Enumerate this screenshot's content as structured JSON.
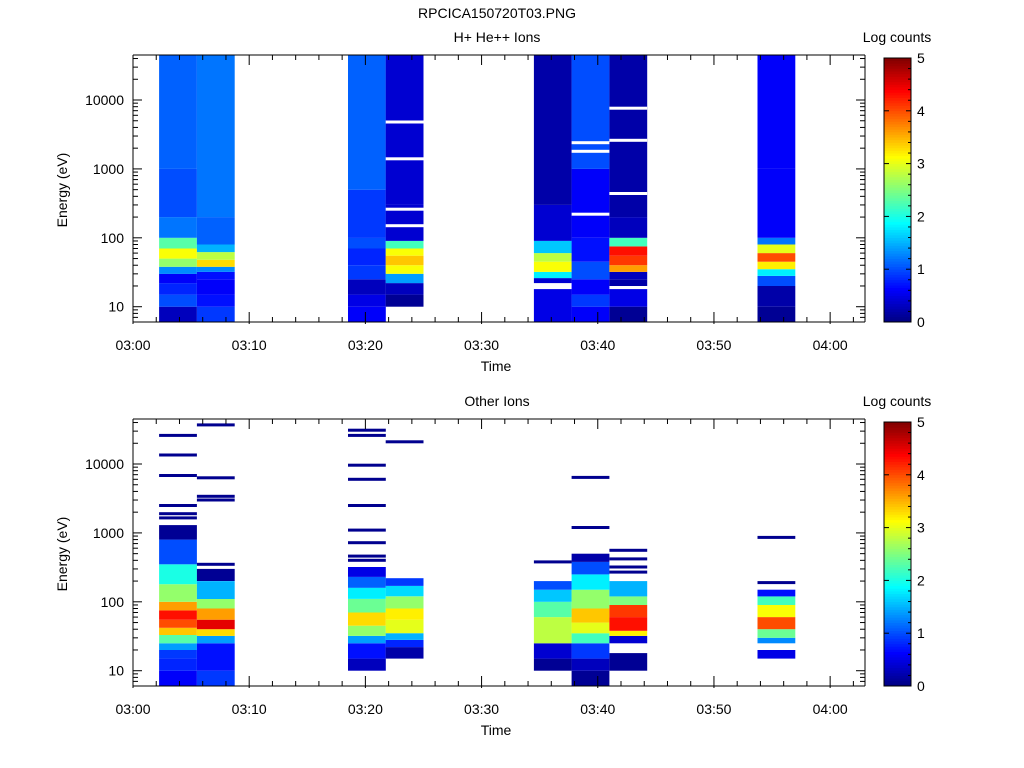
{
  "figure_title": "RPCICA150720T03.PNG",
  "chart_data": [
    {
      "type": "heatmap",
      "title": "H+ He++ Ions",
      "xlabel": "Time",
      "ylabel": "Energy (eV)",
      "y_scale": "log",
      "ylim": [
        6,
        45000
      ],
      "xlim": [
        "03:00",
        "04:03"
      ],
      "x_ticks": [
        "03:00",
        "03:10",
        "03:20",
        "03:30",
        "03:40",
        "03:50",
        "04:00"
      ],
      "y_ticks": [
        "10",
        "100",
        "1000",
        "10000"
      ],
      "colorbar": {
        "label": "Log counts",
        "range": [
          0,
          5
        ],
        "ticks": [
          "0",
          "1",
          "2",
          "3",
          "4",
          "5"
        ]
      },
      "columns": [
        {
          "t_start": "03:02:15",
          "t_end": "03:05:30",
          "bands": [
            [
              6,
              10,
              0.3
            ],
            [
              10,
              15,
              1.0
            ],
            [
              15,
              22,
              0.8
            ],
            [
              22,
              30,
              0.6
            ],
            [
              30,
              38,
              1.3
            ],
            [
              38,
              50,
              2.6
            ],
            [
              50,
              70,
              3.1
            ],
            [
              70,
              100,
              2.3
            ],
            [
              100,
              200,
              1.2
            ],
            [
              200,
              1000,
              1.0
            ],
            [
              1000,
              45000,
              1.1
            ]
          ]
        },
        {
          "t_start": "03:05:30",
          "t_end": "03:08:45",
          "bands": [
            [
              6,
              10,
              0.9
            ],
            [
              10,
              15,
              0.7
            ],
            [
              15,
              25,
              0.6
            ],
            [
              25,
              32,
              0.7
            ],
            [
              32,
              38,
              1.3
            ],
            [
              38,
              48,
              3.3
            ],
            [
              48,
              62,
              2.8
            ],
            [
              62,
              80,
              1.5
            ],
            [
              80,
              200,
              1.1
            ],
            [
              200,
              45000,
              1.2
            ]
          ]
        },
        {
          "t_start": "03:18:30",
          "t_end": "03:21:45",
          "bands": [
            [
              6,
              10,
              0.6
            ],
            [
              10,
              15,
              0.5
            ],
            [
              15,
              25,
              0.3
            ],
            [
              25,
              40,
              0.9
            ],
            [
              40,
              70,
              0.8
            ],
            [
              70,
              100,
              1.0
            ],
            [
              100,
              500,
              0.9
            ],
            [
              500,
              45000,
              1.1
            ]
          ]
        },
        {
          "t_start": "03:21:45",
          "t_end": "03:25:00",
          "bands": [
            [
              10,
              15,
              0.1
            ],
            [
              15,
              22,
              0.3
            ],
            [
              22,
              30,
              1.4
            ],
            [
              30,
              40,
              3.1
            ],
            [
              40,
              55,
              3.4
            ],
            [
              55,
              70,
              3.1
            ],
            [
              70,
              90,
              2.2
            ],
            [
              90,
              300,
              0.4
            ],
            [
              300,
              45000,
              0.4
            ]
          ]
        },
        {
          "t_start": "03:34:30",
          "t_end": "03:37:45",
          "bands": [
            [
              6,
              18,
              0.5
            ],
            [
              22,
              26,
              0.4
            ],
            [
              26,
              32,
              1.8
            ],
            [
              32,
              45,
              3.1
            ],
            [
              45,
              60,
              2.8
            ],
            [
              60,
              90,
              1.6
            ],
            [
              90,
              300,
              0.4
            ],
            [
              300,
              45000,
              0.2
            ]
          ]
        },
        {
          "t_start": "03:37:45",
          "t_end": "03:41:00",
          "bands": [
            [
              6,
              10,
              0.6
            ],
            [
              10,
              15,
              0.9
            ],
            [
              15,
              25,
              0.6
            ],
            [
              25,
              45,
              1.0
            ],
            [
              45,
              100,
              0.7
            ],
            [
              100,
              1000,
              0.6
            ],
            [
              1000,
              45000,
              1.0
            ]
          ]
        },
        {
          "t_start": "03:41:00",
          "t_end": "03:44:15",
          "bands": [
            [
              6,
              10,
              0.1
            ],
            [
              10,
              18,
              0.5
            ],
            [
              20,
              25,
              0.2
            ],
            [
              25,
              32,
              0.3
            ],
            [
              32,
              40,
              3.6
            ],
            [
              40,
              55,
              4.1
            ],
            [
              55,
              75,
              4.3
            ],
            [
              75,
              100,
              2.2
            ],
            [
              100,
              200,
              0.3
            ],
            [
              200,
              45000,
              0.2
            ]
          ]
        },
        {
          "t_start": "03:53:45",
          "t_end": "03:57:00",
          "bands": [
            [
              6,
              10,
              0.1
            ],
            [
              10,
              20,
              0.2
            ],
            [
              20,
              28,
              1.0
            ],
            [
              28,
              35,
              1.8
            ],
            [
              35,
              45,
              3.2
            ],
            [
              45,
              60,
              4.0
            ],
            [
              60,
              80,
              3.0
            ],
            [
              80,
              100,
              1.2
            ],
            [
              100,
              1000,
              0.6
            ],
            [
              1000,
              45000,
              0.6
            ]
          ]
        }
      ],
      "gap_lines": [
        [
          5,
          1800
        ],
        [
          5,
          2400
        ],
        [
          6,
          440
        ],
        [
          3,
          260
        ],
        [
          3,
          1400
        ],
        [
          3,
          4800
        ],
        [
          6,
          2600
        ],
        [
          6,
          7600
        ],
        [
          3,
          150
        ],
        [
          5,
          220
        ]
      ]
    },
    {
      "type": "heatmap",
      "title": "Other Ions",
      "xlabel": "Time",
      "ylabel": "Energy (eV)",
      "y_scale": "log",
      "ylim": [
        6,
        45000
      ],
      "xlim": [
        "03:00",
        "04:03"
      ],
      "x_ticks": [
        "03:00",
        "03:10",
        "03:20",
        "03:30",
        "03:40",
        "03:50",
        "04:00"
      ],
      "y_ticks": [
        "10",
        "100",
        "1000",
        "10000"
      ],
      "colorbar": {
        "label": "Log counts",
        "range": [
          0,
          5
        ],
        "ticks": [
          "0",
          "1",
          "2",
          "3",
          "4",
          "5"
        ]
      },
      "columns": [
        {
          "t_start": "03:02:15",
          "t_end": "03:05:30",
          "bands": [
            [
              6,
              10,
              0.6
            ],
            [
              10,
              15,
              0.8
            ],
            [
              15,
              20,
              0.9
            ],
            [
              20,
              25,
              1.4
            ],
            [
              25,
              33,
              2.3
            ],
            [
              33,
              42,
              3.4
            ],
            [
              42,
              55,
              4.0
            ],
            [
              55,
              75,
              4.3
            ],
            [
              75,
              100,
              3.6
            ],
            [
              100,
              180,
              2.6
            ],
            [
              180,
              350,
              2.0
            ],
            [
              350,
              800,
              1.0
            ],
            [
              800,
              1300,
              0.1
            ]
          ]
        },
        {
          "t_start": "03:05:30",
          "t_end": "03:08:45",
          "bands": [
            [
              6,
              10,
              0.9
            ],
            [
              10,
              25,
              0.7
            ],
            [
              25,
              32,
              1.4
            ],
            [
              32,
              40,
              3.3
            ],
            [
              40,
              55,
              4.5
            ],
            [
              55,
              80,
              3.6
            ],
            [
              80,
              110,
              2.6
            ],
            [
              110,
              200,
              1.5
            ],
            [
              200,
              300,
              0.1
            ]
          ]
        },
        {
          "t_start": "03:18:30",
          "t_end": "03:21:45",
          "bands": [
            [
              10,
              15,
              0.3
            ],
            [
              15,
              25,
              0.7
            ],
            [
              25,
              32,
              1.4
            ],
            [
              32,
              45,
              2.6
            ],
            [
              45,
              70,
              3.3
            ],
            [
              70,
              110,
              2.4
            ],
            [
              110,
              160,
              1.8
            ],
            [
              160,
              230,
              1.1
            ],
            [
              230,
              320,
              0.5
            ]
          ]
        },
        {
          "t_start": "03:21:45",
          "t_end": "03:25:00",
          "bands": [
            [
              15,
              22,
              0.2
            ],
            [
              22,
              28,
              0.8
            ],
            [
              28,
              35,
              1.5
            ],
            [
              35,
              55,
              3.0
            ],
            [
              55,
              80,
              3.2
            ],
            [
              80,
              120,
              2.6
            ],
            [
              120,
              170,
              1.7
            ],
            [
              170,
              220,
              0.9
            ]
          ]
        },
        {
          "t_start": "03:34:30",
          "t_end": "03:37:45",
          "bands": [
            [
              10,
              15,
              0.1
            ],
            [
              15,
              25,
              0.4
            ],
            [
              25,
              60,
              2.8
            ],
            [
              60,
              100,
              2.3
            ],
            [
              100,
              150,
              1.6
            ],
            [
              150,
              200,
              1.0
            ]
          ]
        },
        {
          "t_start": "03:37:45",
          "t_end": "03:41:00",
          "bands": [
            [
              6,
              10,
              0.1
            ],
            [
              10,
              15,
              0.3
            ],
            [
              15,
              25,
              0.9
            ],
            [
              25,
              35,
              2.2
            ],
            [
              35,
              50,
              3.0
            ],
            [
              50,
              80,
              3.4
            ],
            [
              80,
              150,
              2.6
            ],
            [
              150,
              250,
              1.8
            ],
            [
              250,
              380,
              1.0
            ],
            [
              380,
              500,
              0.2
            ]
          ]
        },
        {
          "t_start": "03:41:00",
          "t_end": "03:44:15",
          "bands": [
            [
              10,
              18,
              0.1
            ],
            [
              25,
              32,
              0.4
            ],
            [
              32,
              38,
              3.2
            ],
            [
              38,
              60,
              4.3
            ],
            [
              60,
              90,
              4.1
            ],
            [
              90,
              120,
              2.5
            ],
            [
              120,
              200,
              1.5
            ]
          ]
        },
        {
          "t_start": "03:53:45",
          "t_end": "03:57:00",
          "bands": [
            [
              15,
              20,
              0.5
            ],
            [
              25,
              30,
              1.3
            ],
            [
              30,
              40,
              2.4
            ],
            [
              40,
              60,
              4.0
            ],
            [
              60,
              90,
              3.1
            ],
            [
              90,
              120,
              2.2
            ],
            [
              120,
              150,
              0.7
            ]
          ]
        }
      ],
      "sparse_lines": [
        [
          0,
          26000
        ],
        [
          0,
          13500
        ],
        [
          0,
          6800
        ],
        [
          0,
          2500
        ],
        [
          0,
          1900
        ],
        [
          0,
          1650
        ],
        [
          1,
          37000
        ],
        [
          1,
          6300
        ],
        [
          1,
          3400
        ],
        [
          1,
          3000
        ],
        [
          1,
          350
        ],
        [
          2,
          31000
        ],
        [
          2,
          26000
        ],
        [
          2,
          9600
        ],
        [
          2,
          6000
        ],
        [
          2,
          2500
        ],
        [
          2,
          1100
        ],
        [
          2,
          720
        ],
        [
          2,
          460
        ],
        [
          2,
          400
        ],
        [
          3,
          21000
        ],
        [
          4,
          380
        ],
        [
          5,
          6400
        ],
        [
          5,
          1200
        ],
        [
          6,
          560
        ],
        [
          6,
          420
        ],
        [
          6,
          320
        ],
        [
          6,
          270
        ],
        [
          7,
          860
        ],
        [
          7,
          190
        ]
      ]
    }
  ]
}
